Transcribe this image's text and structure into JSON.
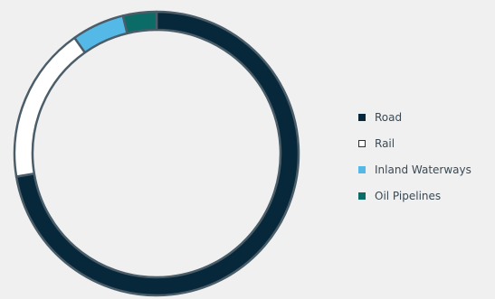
{
  "chart_data": {
    "type": "pie",
    "variant": "donut",
    "categories": [
      "Road",
      "Rail",
      "Inland Waterways",
      "Oil Pipelines"
    ],
    "values": [
      72.4,
      17.8,
      6.0,
      3.8
    ],
    "unit": "%",
    "colors": [
      "#06283a",
      "#ffffff",
      "#55b9e8",
      "#0b6b66"
    ],
    "stroke_color": "#4a5d68",
    "start_angle_deg": 0,
    "direction": "clockwise",
    "legend_position": "right",
    "title": ""
  }
}
